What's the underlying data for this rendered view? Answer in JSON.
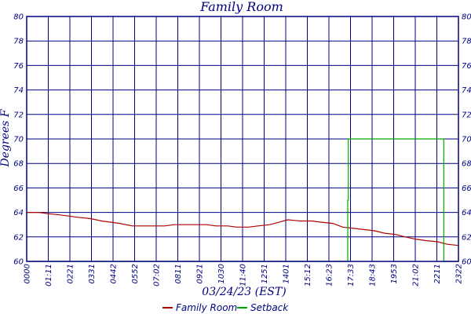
{
  "chart_data": {
    "type": "line",
    "title": "Family Room",
    "xlabel": "03/24/23 (EST)",
    "ylabel": "Degrees F",
    "ylim": [
      60,
      80
    ],
    "yticks": [
      60,
      62,
      64,
      66,
      68,
      70,
      72,
      74,
      76,
      78,
      80
    ],
    "xlim": [
      "00:00",
      "23:59"
    ],
    "xtick_labels": [
      "0000",
      "01:11",
      "0221",
      "0331",
      "0442",
      "0552",
      "07:02",
      "0811",
      "0921",
      "1030",
      "11:40",
      "1251",
      "1401",
      "15:12",
      "16:23",
      "17:33",
      "18:43",
      "1953",
      "21:02",
      "2211",
      "2322"
    ],
    "grid": true,
    "legend": "bottom",
    "colors": {
      "axis": "#000080",
      "grid": "#000080",
      "text": "#000080"
    },
    "series": [
      {
        "name": "Family Room",
        "color": "#b00000",
        "x": [
          "00:00",
          "00:40",
          "01:11",
          "01:50",
          "02:21",
          "02:50",
          "03:31",
          "04:10",
          "04:42",
          "05:10",
          "05:52",
          "06:30",
          "07:02",
          "07:40",
          "08:11",
          "08:50",
          "09:21",
          "10:00",
          "10:30",
          "11:10",
          "11:40",
          "12:20",
          "12:51",
          "13:30",
          "14:01",
          "14:30",
          "15:12",
          "15:50",
          "16:23",
          "17:00",
          "17:33",
          "18:10",
          "18:43",
          "19:20",
          "19:53",
          "20:30",
          "21:02",
          "21:40",
          "22:11",
          "22:50",
          "23:22",
          "23:59"
        ],
        "y": [
          64.0,
          64.0,
          63.9,
          63.8,
          63.7,
          63.6,
          63.5,
          63.3,
          63.2,
          63.1,
          62.9,
          62.9,
          62.9,
          62.9,
          63.0,
          63.0,
          63.0,
          63.0,
          62.9,
          62.9,
          62.8,
          62.8,
          62.9,
          63.0,
          63.2,
          63.4,
          63.3,
          63.3,
          63.2,
          63.1,
          62.8,
          62.7,
          62.6,
          62.5,
          62.3,
          62.2,
          62.0,
          61.8,
          61.7,
          61.6,
          61.4,
          61.3
        ]
      },
      {
        "name": "Setback",
        "color": "#00aa00",
        "x": [
          "00:00",
          "17:50",
          "17:50",
          "17:52",
          "17:52",
          "23:10",
          "23:10",
          "23:59"
        ],
        "y": [
          60,
          60,
          65,
          65,
          70,
          70,
          60,
          60
        ]
      }
    ]
  }
}
